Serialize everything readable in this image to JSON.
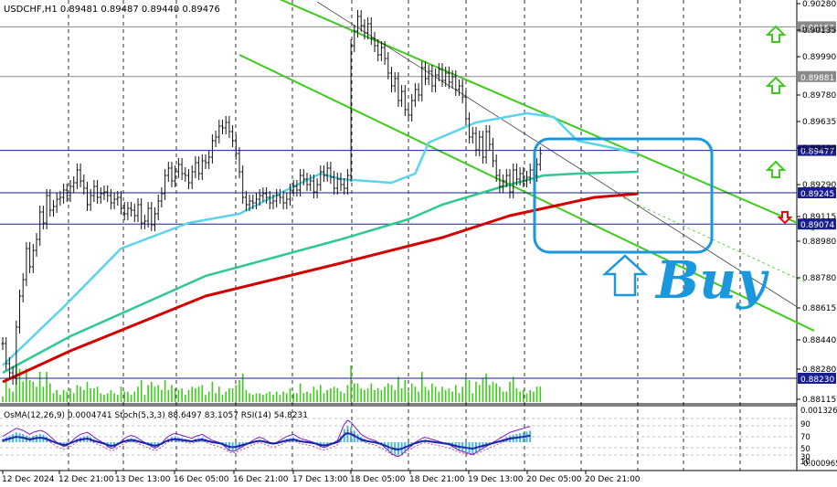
{
  "chart_data": {
    "type": "candlestick",
    "symbol_header": "USDCHF,H1  0.89481 0.89487 0.89440 0.89476",
    "price_axis": {
      "ylim": [
        0.8809,
        0.903
      ],
      "ticks": [
        "0.90280",
        "0.90135",
        "0.89990",
        "0.89780",
        "0.89635",
        "0.89490",
        "0.89290",
        "0.89115",
        "0.88980",
        "0.88780",
        "0.88615",
        "0.88440",
        "0.88280",
        "0.88115"
      ]
    },
    "time_axis_labels": [
      "12 Dec 2024",
      "12 Dec 21:00",
      "13 Dec 13:00",
      "16 Dec 05:00",
      "16 Dec 21:00",
      "17 Dec 13:00",
      "18 Dec 05:00",
      "18 Dec 21:00",
      "19 Dec 13:00",
      "20 Dec 05:00",
      "20 Dec 21:00"
    ],
    "levels": [
      {
        "value": 0.90153,
        "label": "0.90153",
        "color": "#8a8a8a"
      },
      {
        "value": 0.89881,
        "label": "0.89881",
        "color": "#8a8a8a"
      },
      {
        "value": 0.89477,
        "label": "0.89477",
        "color": "#1a1f8f"
      },
      {
        "value": 0.89245,
        "label": "0.89245",
        "color": "#1a1f8f"
      },
      {
        "value": 0.89074,
        "label": "0.89074",
        "color": "#1a1f8f"
      },
      {
        "value": 0.8823,
        "label": "0.88230",
        "color": "#1a1f8f"
      }
    ],
    "closes": [
      0.8842,
      0.8831,
      0.8826,
      0.8823,
      0.8851,
      0.8868,
      0.8877,
      0.8894,
      0.8884,
      0.8893,
      0.8899,
      0.8914,
      0.8908,
      0.8923,
      0.8915,
      0.8917,
      0.8921,
      0.8922,
      0.8926,
      0.8923,
      0.8928,
      0.893,
      0.8937,
      0.8931,
      0.8927,
      0.8918,
      0.8923,
      0.8928,
      0.8922,
      0.8924,
      0.8925,
      0.8923,
      0.8919,
      0.8921,
      0.8922,
      0.8916,
      0.8913,
      0.8916,
      0.8915,
      0.8912,
      0.8918,
      0.8908,
      0.8909,
      0.8916,
      0.8907,
      0.8913,
      0.892,
      0.8924,
      0.8934,
      0.8938,
      0.8931,
      0.8936,
      0.894,
      0.8935,
      0.8934,
      0.893,
      0.8936,
      0.8941,
      0.8935,
      0.8942,
      0.8941,
      0.8944,
      0.8953,
      0.8955,
      0.8961,
      0.896,
      0.8963,
      0.8958,
      0.8953,
      0.8946,
      0.8936,
      0.8922,
      0.8918,
      0.892,
      0.8919,
      0.8921,
      0.8923,
      0.8924,
      0.8922,
      0.8919,
      0.892,
      0.8923,
      0.8922,
      0.8919,
      0.8921,
      0.8926,
      0.8928,
      0.8926,
      0.8934,
      0.8932,
      0.8929,
      0.8931,
      0.8925,
      0.8929,
      0.8936,
      0.8934,
      0.8938,
      0.8933,
      0.8927,
      0.8932,
      0.8929,
      0.8927,
      0.8934,
      0.9005,
      0.9013,
      0.9021,
      0.9016,
      0.9012,
      0.9017,
      0.9009,
      0.9005,
      0.9,
      0.9004,
      0.8998,
      0.899,
      0.8983,
      0.8987,
      0.8975,
      0.898,
      0.897,
      0.8967,
      0.8975,
      0.8981,
      0.8978,
      0.8993,
      0.8987,
      0.8991,
      0.8983,
      0.8989,
      0.8992,
      0.8986,
      0.899,
      0.8985,
      0.8988,
      0.8981,
      0.8983,
      0.8977,
      0.8965,
      0.8955,
      0.8957,
      0.8948,
      0.8955,
      0.8944,
      0.8958,
      0.8951,
      0.8942,
      0.8934,
      0.8928,
      0.8931,
      0.8934,
      0.8925,
      0.8937,
      0.8932,
      0.8935,
      0.8931,
      0.8933,
      0.8937,
      0.8934,
      0.894,
      0.8946
    ],
    "moving_averages": [
      {
        "color": "#d40000",
        "period": 200,
        "points": [
          [
            0,
            0.8821
          ],
          [
            20,
            0.8838
          ],
          [
            60,
            0.8868
          ],
          [
            100,
            0.8886
          ],
          [
            130,
            0.89
          ],
          [
            150,
            0.8912
          ],
          [
            165,
            0.8918
          ],
          [
            175,
            0.8922
          ],
          [
            188,
            0.8924
          ]
        ]
      },
      {
        "color": "#2ec98e",
        "period": 100,
        "points": [
          [
            0,
            0.8826
          ],
          [
            20,
            0.8846
          ],
          [
            60,
            0.8879
          ],
          [
            100,
            0.8899
          ],
          [
            120,
            0.891
          ],
          [
            130,
            0.8918
          ],
          [
            148,
            0.8928
          ],
          [
            160,
            0.8934
          ],
          [
            170,
            0.8935
          ],
          [
            188,
            0.8936
          ]
        ]
      },
      {
        "color": "#5ad4ea",
        "period": 50,
        "points": [
          [
            0,
            0.883
          ],
          [
            18,
            0.8862
          ],
          [
            35,
            0.8894
          ],
          [
            55,
            0.8908
          ],
          [
            70,
            0.8913
          ],
          [
            85,
            0.8927
          ],
          [
            94,
            0.8935
          ],
          [
            100,
            0.8932
          ],
          [
            115,
            0.893
          ],
          [
            122,
            0.8935
          ],
          [
            126,
            0.8952
          ],
          [
            140,
            0.8963
          ],
          [
            155,
            0.8968
          ],
          [
            163,
            0.8966
          ],
          [
            170,
            0.8953
          ],
          [
            178,
            0.895
          ],
          [
            188,
            0.8946
          ]
        ]
      }
    ],
    "channel": {
      "upper": [
        [
          70,
          0.904
        ],
        [
          240,
          0.8904
        ]
      ],
      "lower": [
        [
          70,
          0.9
        ],
        [
          240,
          0.8849
        ]
      ],
      "color": "#3ccc1a"
    },
    "arrows_up": [
      0.9011,
      0.8983,
      0.8937
    ],
    "arrow_down": 0.8911,
    "annotation": "Buy",
    "indicator": {
      "legend": "OsMA(12,26,9) 0.0004741  Stoch(5,3,3) 88.6497 83.1057  RSI(14) 54.8231",
      "axis_ticks": [
        "0.0013264",
        "90",
        "70",
        "50",
        "30",
        "10",
        "-0.0009652"
      ],
      "histogram": [
        0.2,
        0.3,
        0.4,
        0.5,
        0.6,
        0.55,
        0.5,
        0.4,
        0.3,
        0.4,
        0.45,
        0.5,
        0.45,
        0.35,
        0.2,
        0.05,
        -0.1,
        -0.2,
        -0.3,
        -0.25,
        -0.1,
        0.05,
        0.2,
        0.3,
        0.35,
        0.4,
        0.3,
        0.15,
        0.05,
        -0.05,
        -0.15,
        -0.3,
        -0.4,
        -0.35,
        -0.2,
        -0.05,
        0.1,
        0.2,
        0.25,
        0.2,
        0.1,
        0.0,
        -0.1,
        -0.2,
        -0.3,
        -0.4,
        -0.3,
        -0.15,
        0.05,
        0.2,
        0.3,
        0.35,
        0.3,
        0.25,
        0.2,
        0.15,
        0.1,
        0.2,
        0.25,
        0.3,
        0.2,
        0.1,
        0.0,
        -0.05,
        -0.1,
        -0.2,
        -0.35,
        -0.5,
        -0.55,
        -0.5,
        -0.4,
        -0.3,
        -0.2,
        -0.1,
        0.0,
        0.1,
        0.15,
        0.1,
        0.0,
        -0.1,
        -0.15,
        -0.1,
        0.0,
        0.1,
        0.2,
        0.25,
        0.3,
        0.2,
        0.1,
        0.05,
        0.0,
        -0.05,
        -0.1,
        -0.2,
        -0.3,
        -0.35,
        -0.3,
        -0.2,
        -0.1,
        0.0,
        0.4,
        0.8,
        1.0,
        0.9,
        0.7,
        0.5,
        0.3,
        0.2,
        0.1,
        0.05,
        0.0,
        -0.1,
        -0.2,
        -0.35,
        -0.5,
        -0.65,
        -0.75,
        -0.8,
        -0.7,
        -0.55,
        -0.4,
        -0.25,
        -0.1,
        0.0,
        0.1,
        0.15,
        0.1,
        0.05,
        0.0,
        -0.05,
        -0.1,
        -0.15,
        -0.2,
        -0.3,
        -0.4,
        -0.5,
        -0.55,
        -0.6,
        -0.65,
        -0.7,
        -0.6,
        -0.5,
        -0.4,
        -0.3,
        -0.2,
        -0.1,
        0.0,
        0.1,
        0.2,
        0.3,
        0.4,
        0.45,
        0.5,
        0.55,
        0.6,
        0.65,
        0.7
      ]
    }
  },
  "colors": {
    "candles": "#111111",
    "axis_text": "#000000",
    "buy": "#1a97dd",
    "box": "#1a97dd",
    "volume": "#3ccc1a"
  }
}
